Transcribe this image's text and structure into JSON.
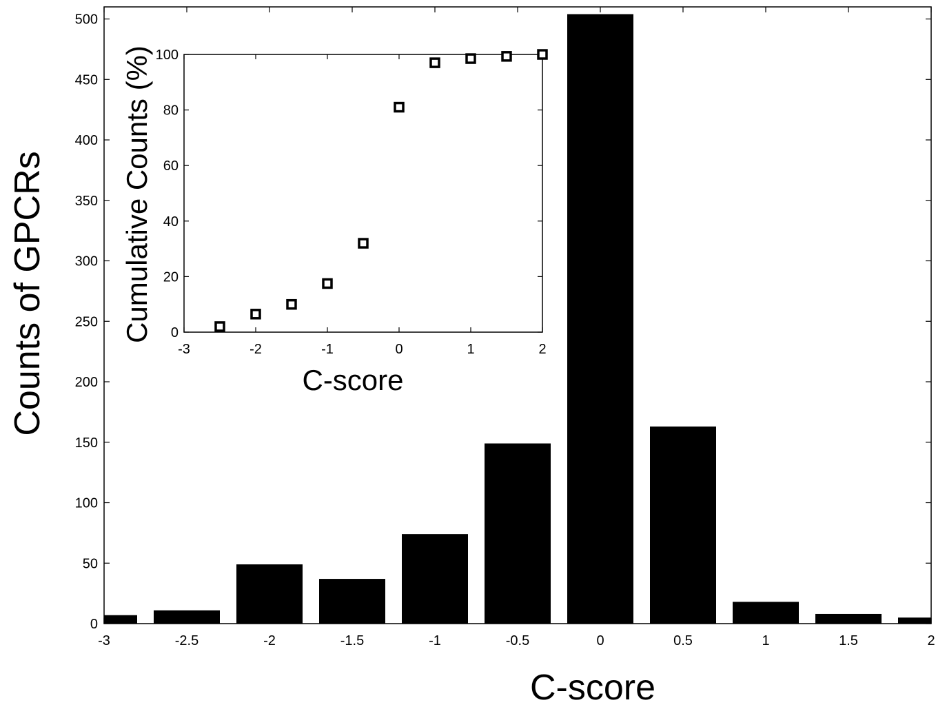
{
  "chart_data": [
    {
      "type": "bar",
      "xlabel": "C-score",
      "ylabel": "Counts of GPCRs",
      "xlim": [
        -3,
        2
      ],
      "ylim": [
        0,
        510
      ],
      "xticks": [
        -3,
        -2.5,
        -2,
        -1.5,
        -1,
        -0.5,
        0,
        0.5,
        1,
        1.5,
        2
      ],
      "yticks": [
        0,
        50,
        100,
        150,
        200,
        250,
        300,
        350,
        400,
        450,
        500
      ],
      "bar_width": 0.4,
      "x": [
        -3,
        -2.5,
        -2,
        -1.5,
        -1,
        -0.5,
        0,
        0.5,
        1,
        1.5,
        2
      ],
      "values": [
        7,
        11,
        49,
        37,
        74,
        149,
        504,
        163,
        18,
        8,
        5
      ],
      "bar_color": "#000000",
      "grid": false,
      "legend": "none"
    },
    {
      "type": "scatter",
      "xlabel": "C-score",
      "ylabel": "Cumulative Counts (%)",
      "xlim": [
        -3,
        2
      ],
      "ylim": [
        0,
        100
      ],
      "xticks": [
        -3,
        -2,
        -1,
        0,
        1,
        2
      ],
      "yticks": [
        0,
        20,
        40,
        60,
        80,
        100
      ],
      "x": [
        -2.5,
        -2,
        -1.5,
        -1,
        -0.5,
        0,
        0.5,
        1,
        1.5,
        2
      ],
      "values": [
        2,
        6.5,
        10,
        17.5,
        32,
        81,
        97,
        98.5,
        99.3,
        100
      ],
      "marker": "open-square",
      "marker_color": "#000000",
      "grid": false,
      "legend": "none"
    }
  ]
}
